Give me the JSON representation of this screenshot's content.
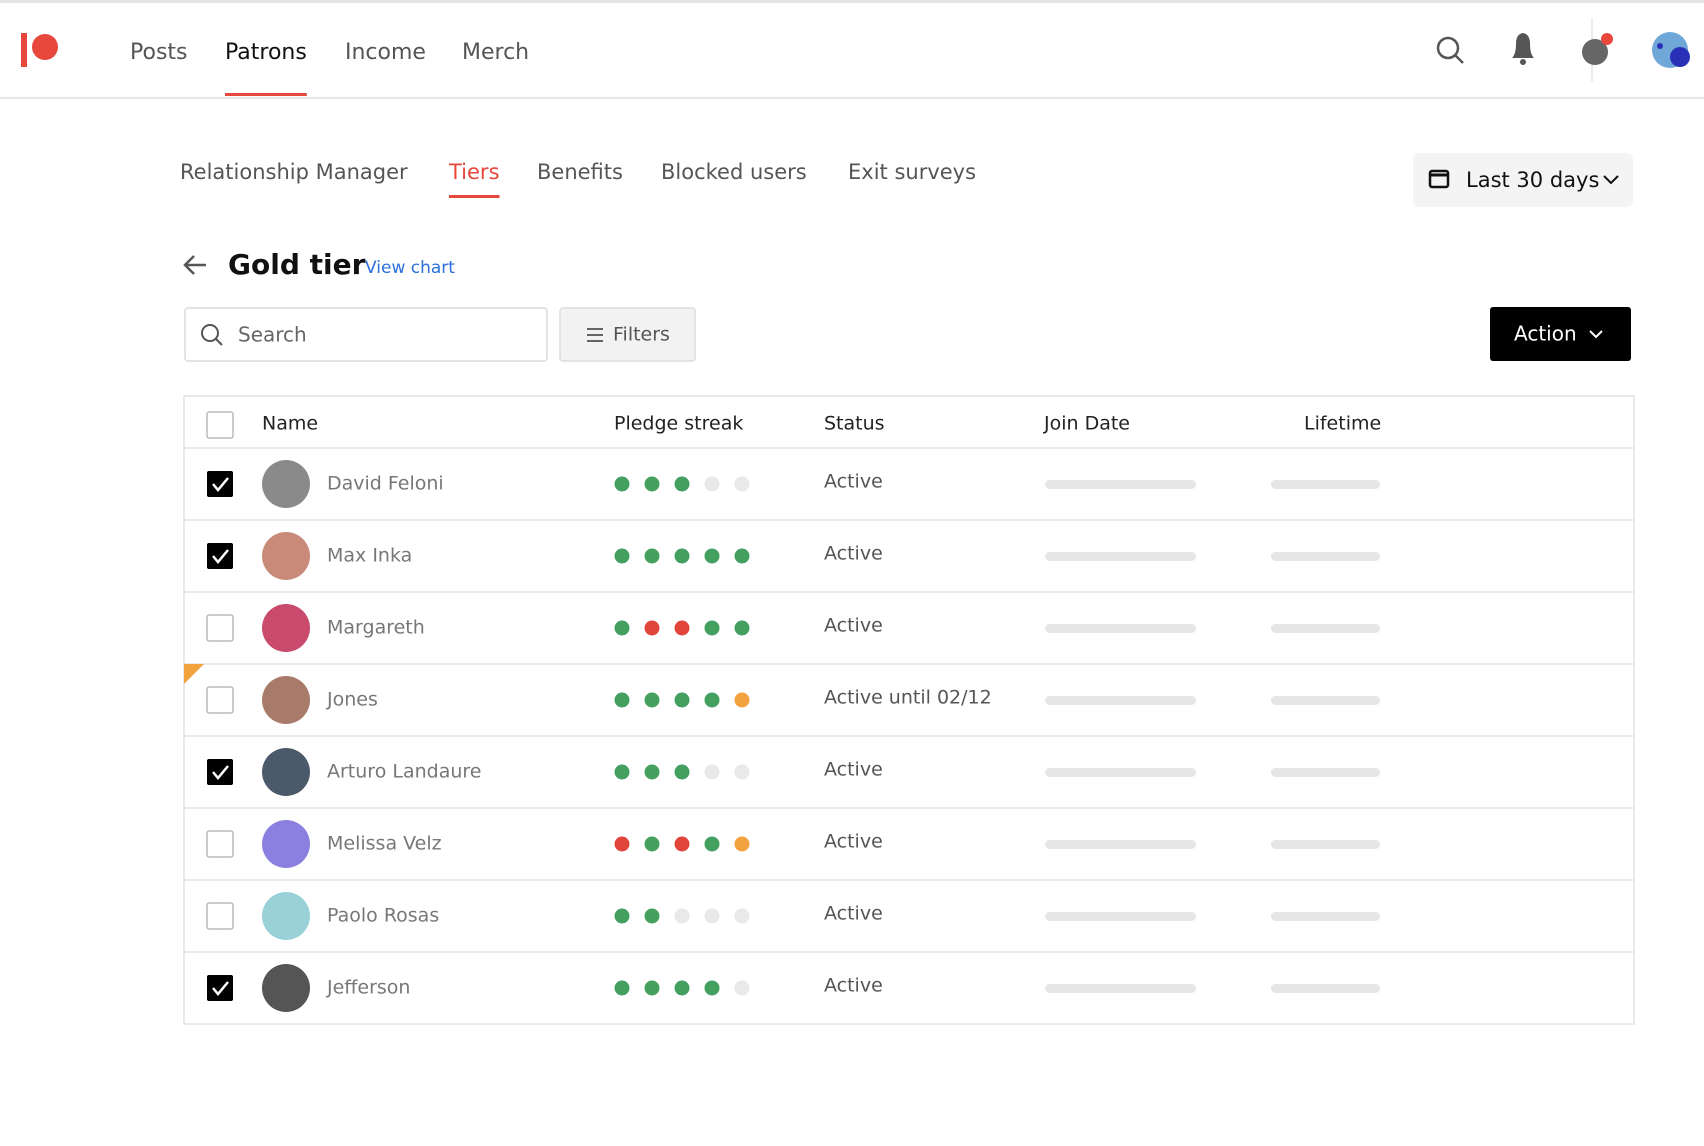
{
  "nav": {
    "items": [
      "Posts",
      "Patrons",
      "Income",
      "Merch"
    ],
    "active": 1
  },
  "subtabs": {
    "items": [
      "Relationship Manager",
      "Tiers",
      "Benefits",
      "Blocked users",
      "Exit surveys"
    ],
    "active": 1
  },
  "date_range": "Last 30 days",
  "page": {
    "title": "Gold tier",
    "link": "View chart"
  },
  "toolbar": {
    "search_placeholder": "Search",
    "filters": "Filters",
    "action": "Action"
  },
  "table": {
    "headers": [
      "Name",
      "Pledge streak",
      "Status",
      "Join Date",
      "Lifetime"
    ],
    "rows": [
      {
        "name": "David Feloni",
        "checked": true,
        "flagged": false,
        "status": "Active",
        "streak": [
          "#43a05e",
          "#43a05e",
          "#43a05e",
          "#e9e9e9",
          "#e9e9e9"
        ]
      },
      {
        "name": "Max Inka",
        "checked": true,
        "flagged": false,
        "status": "Active",
        "streak": [
          "#43a05e",
          "#43a05e",
          "#43a05e",
          "#43a05e",
          "#43a05e"
        ]
      },
      {
        "name": "Margareth",
        "checked": false,
        "flagged": false,
        "status": "Active",
        "streak": [
          "#43a05e",
          "#e0463a",
          "#e0463a",
          "#43a05e",
          "#43a05e"
        ]
      },
      {
        "name": "Jones",
        "checked": false,
        "flagged": true,
        "status": "Active until 02/12",
        "streak": [
          "#43a05e",
          "#43a05e",
          "#43a05e",
          "#43a05e",
          "#f3a240"
        ]
      },
      {
        "name": "Arturo Landaure",
        "checked": true,
        "flagged": false,
        "status": "Active",
        "streak": [
          "#43a05e",
          "#43a05e",
          "#43a05e",
          "#e9e9e9",
          "#e9e9e9"
        ]
      },
      {
        "name": "Melissa Velz",
        "checked": false,
        "flagged": false,
        "status": "Active",
        "streak": [
          "#e0463a",
          "#43a05e",
          "#e0463a",
          "#43a05e",
          "#f3a240"
        ]
      },
      {
        "name": "Paolo Rosas",
        "checked": false,
        "flagged": false,
        "status": "Active",
        "streak": [
          "#43a05e",
          "#43a05e",
          "#e9e9e9",
          "#e9e9e9",
          "#e9e9e9"
        ]
      },
      {
        "name": "Jefferson",
        "checked": true,
        "flagged": false,
        "status": "Active",
        "streak": [
          "#43a05e",
          "#43a05e",
          "#43a05e",
          "#43a05e",
          "#e9e9e9"
        ]
      }
    ]
  }
}
